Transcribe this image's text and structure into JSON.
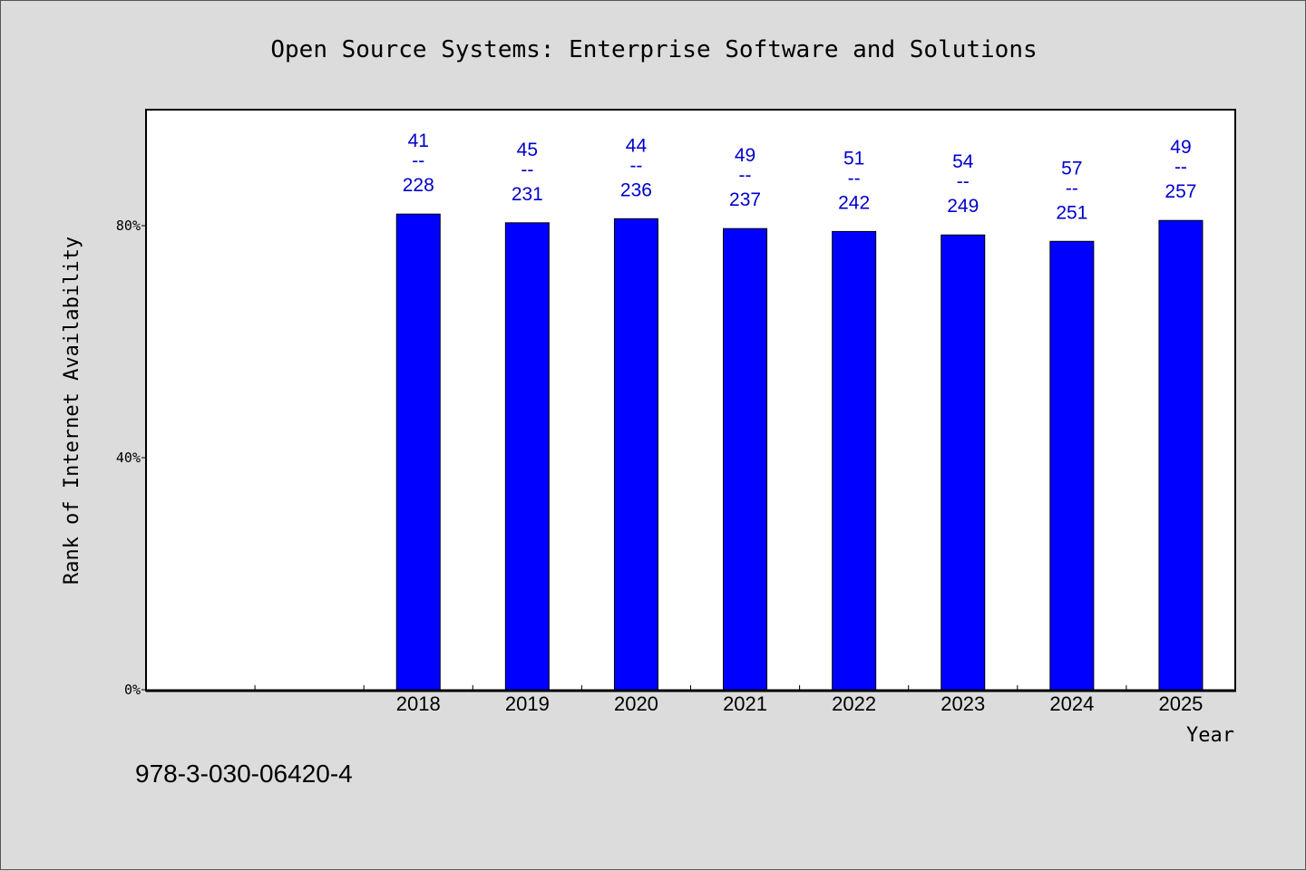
{
  "chart_data": {
    "type": "bar",
    "title": "Open Source Systems: Enterprise Software and Solutions",
    "xlabel": "Year",
    "ylabel": "Rank of Internet Availability",
    "categories": [
      "",
      "",
      "2018",
      "2019",
      "2020",
      "2021",
      "2022",
      "2023",
      "2024",
      "2025"
    ],
    "values": [
      null,
      null,
      82,
      80.5,
      81.2,
      79.5,
      79,
      78.4,
      77.3,
      80.9
    ],
    "data_labels": [
      null,
      null,
      {
        "top": "41",
        "sep": "--",
        "bottom": "228"
      },
      {
        "top": "45",
        "sep": "--",
        "bottom": "231"
      },
      {
        "top": "44",
        "sep": "--",
        "bottom": "236"
      },
      {
        "top": "49",
        "sep": "--",
        "bottom": "237"
      },
      {
        "top": "51",
        "sep": "--",
        "bottom": "242"
      },
      {
        "top": "54",
        "sep": "--",
        "bottom": "249"
      },
      {
        "top": "57",
        "sep": "--",
        "bottom": "251"
      },
      {
        "top": "49",
        "sep": "--",
        "bottom": "257"
      }
    ],
    "yticks": [
      {
        "value": 0,
        "label": "0%"
      },
      {
        "value": 40,
        "label": "40%"
      },
      {
        "value": 80,
        "label": "80%"
      }
    ],
    "ylim": [
      0,
      100
    ],
    "grid": false,
    "legend": "none",
    "bar_color": "#0000ff",
    "label_color": "#0000cc"
  },
  "footer": {
    "isbn": "978-3-030-06420-4"
  }
}
